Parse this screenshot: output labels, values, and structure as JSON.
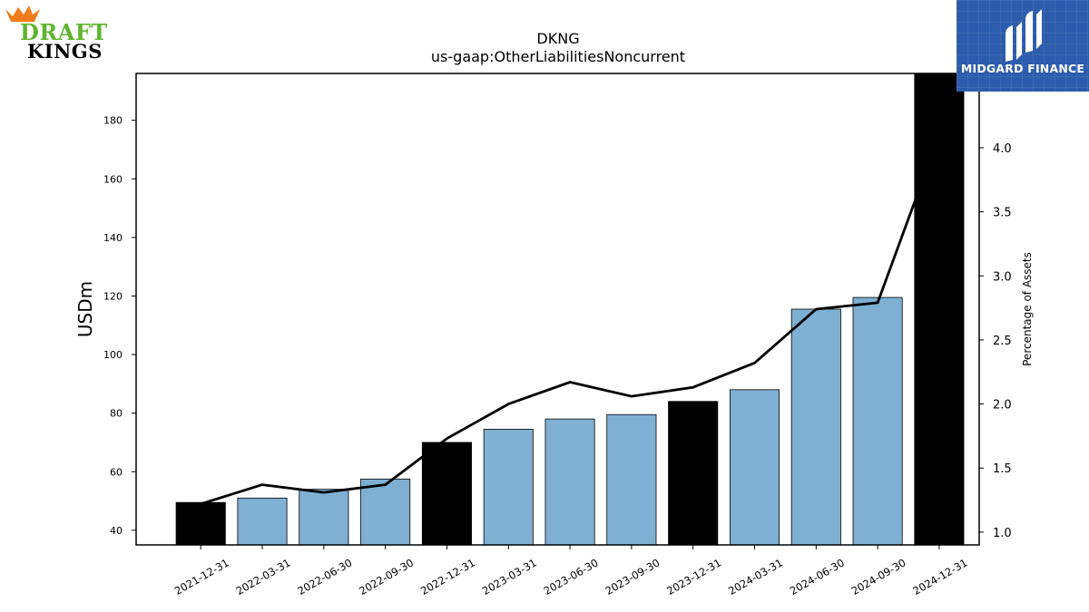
{
  "logos": {
    "left_brand_line1": "DRAFT",
    "left_brand_line2": "KINGS",
    "right_brand_name": "MIDGARD FINANCE",
    "left_brand_color": "#5fb52e",
    "left_crown_color": "#f07c1b",
    "right_box_color": "#2d5cac"
  },
  "chart_data": {
    "type": "bar",
    "title": "DKNG",
    "subtitle": "us-gaap:OtherLiabilitiesNoncurrent",
    "ylabel": "USDm",
    "y2label": "Percentage of Assets",
    "categories": [
      "2021-12-31",
      "2022-03-31",
      "2022-06-30",
      "2022-09-30",
      "2022-12-31",
      "2023-03-31",
      "2023-06-30",
      "2023-09-30",
      "2023-12-31",
      "2024-03-31",
      "2024-06-30",
      "2024-09-30",
      "2024-12-31"
    ],
    "series": [
      {
        "kind": "bar",
        "values": [
          49.5,
          51.0,
          54.0,
          57.5,
          70.0,
          74.5,
          78.0,
          79.5,
          84.0,
          88.0,
          115.5,
          119.5,
          196.0
        ],
        "bar_colors": [
          "#000000",
          "#7fb0d3",
          "#7fb0d3",
          "#7fb0d3",
          "#000000",
          "#7fb0d3",
          "#7fb0d3",
          "#7fb0d3",
          "#000000",
          "#7fb0d3",
          "#7fb0d3",
          "#7fb0d3",
          "#000000"
        ]
      },
      {
        "kind": "line",
        "axis": "right",
        "values": [
          1.22,
          1.37,
          1.31,
          1.37,
          1.73,
          2.0,
          2.17,
          2.06,
          2.13,
          2.32,
          2.74,
          2.79,
          4.1
        ],
        "color": "#000000"
      }
    ],
    "ylim": [
      35,
      196
    ],
    "y2lim": [
      0.9,
      4.58
    ],
    "yticks": [
      "40",
      "60",
      "80",
      "100",
      "120",
      "140",
      "160",
      "180"
    ],
    "y2ticks": [
      "1.0",
      "1.5",
      "2.0",
      "2.5",
      "3.0",
      "3.5",
      "4.0"
    ],
    "grid": false,
    "legend": "none"
  }
}
